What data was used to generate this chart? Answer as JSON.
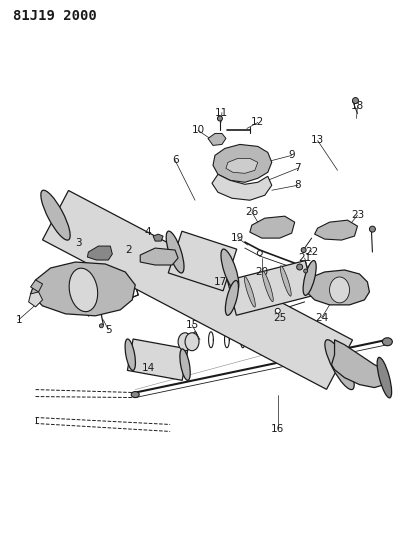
{
  "title": "81J19 2000",
  "bg_color": "#ffffff",
  "line_color": "#1a1a1a",
  "gray_light": "#d8d8d8",
  "gray_mid": "#b8b8b8",
  "gray_dark": "#888888",
  "title_fontsize": 10,
  "label_fontsize": 7.5,
  "figsize": [
    4.07,
    5.33
  ],
  "dpi": 100
}
